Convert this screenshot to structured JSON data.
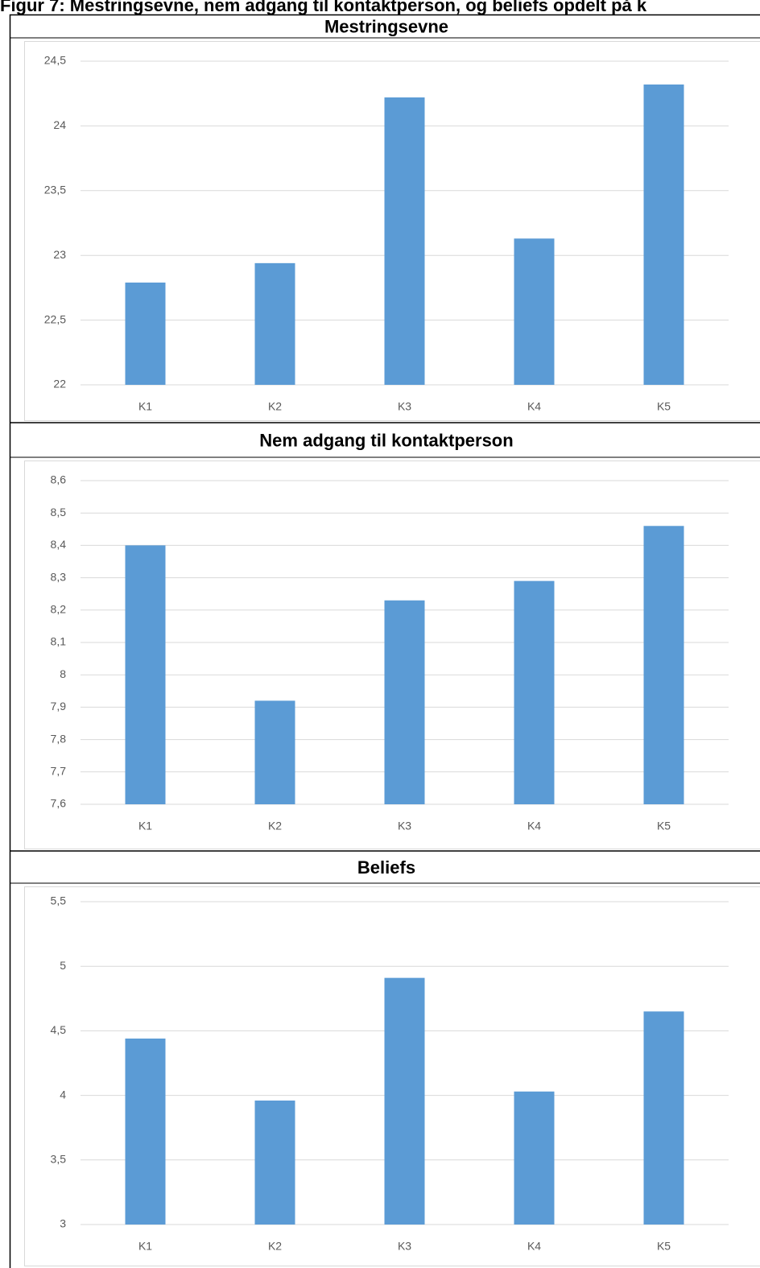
{
  "caption": "Figur 7: Mestringsevne, nem adgang til kontaktperson, og beliefs opdelt på k",
  "chart_data": [
    {
      "type": "bar",
      "title": "Mestringsevne",
      "categories": [
        "K1",
        "K2",
        "K3",
        "K4",
        "K5"
      ],
      "values": [
        22.79,
        22.94,
        24.22,
        23.13,
        24.32
      ],
      "color": "#5b9bd5",
      "ylim": [
        22,
        24.5
      ],
      "yticks": [
        22,
        {
          "value": 22.5,
          "label": "22,5"
        },
        23,
        {
          "value": 23.5,
          "label": "23,5"
        },
        24,
        {
          "value": 24.5,
          "label": "24,5"
        }
      ],
      "grid": true
    },
    {
      "type": "bar",
      "title": "Nem adgang til kontaktperson",
      "categories": [
        "K1",
        "K2",
        "K3",
        "K4",
        "K5"
      ],
      "values": [
        8.4,
        7.92,
        8.23,
        8.29,
        8.46
      ],
      "color": "#5b9bd5",
      "ylim": [
        7.6,
        8.6
      ],
      "yticks": [
        {
          "value": 7.6,
          "label": "7,6"
        },
        {
          "value": 7.7,
          "label": "7,7"
        },
        {
          "value": 7.8,
          "label": "7,8"
        },
        {
          "value": 7.9,
          "label": "7,9"
        },
        8,
        {
          "value": 8.1,
          "label": "8,1"
        },
        {
          "value": 8.2,
          "label": "8,2"
        },
        {
          "value": 8.3,
          "label": "8,3"
        },
        {
          "value": 8.4,
          "label": "8,4"
        },
        {
          "value": 8.5,
          "label": "8,5"
        },
        {
          "value": 8.6,
          "label": "8,6"
        }
      ],
      "grid": true
    },
    {
      "type": "bar",
      "title": "Beliefs",
      "categories": [
        "K1",
        "K2",
        "K3",
        "K4",
        "K5"
      ],
      "values": [
        4.44,
        3.96,
        4.91,
        4.03,
        4.65
      ],
      "color": "#5b9bd5",
      "ylim": [
        3,
        5.5
      ],
      "yticks": [
        3,
        {
          "value": 3.5,
          "label": "3,5"
        },
        4,
        {
          "value": 4.5,
          "label": "4,5"
        },
        5,
        {
          "value": 5.5,
          "label": "5,5"
        }
      ],
      "grid": true
    }
  ]
}
